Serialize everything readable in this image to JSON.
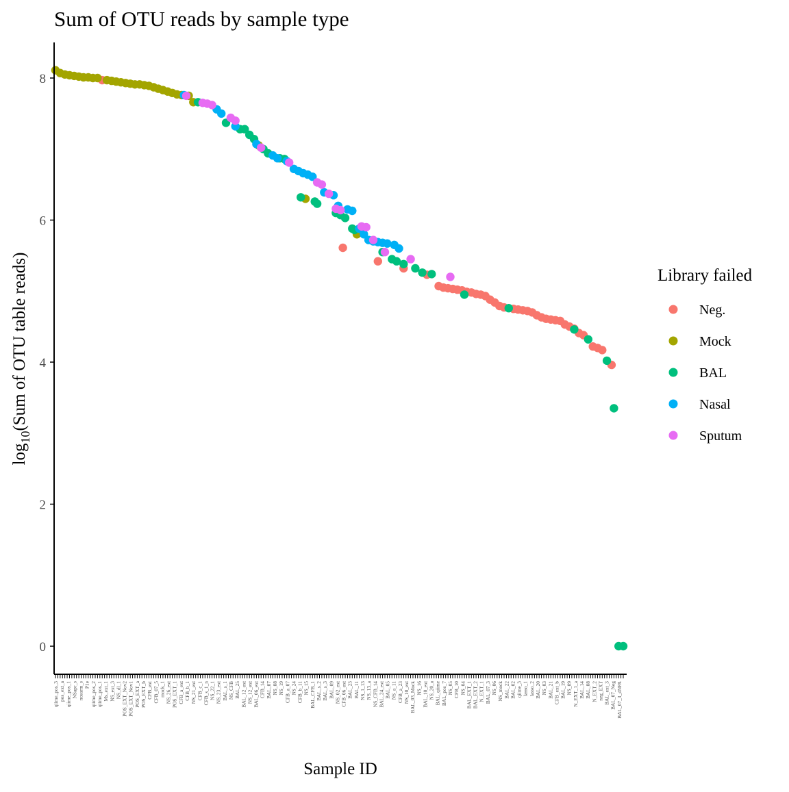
{
  "colors": {
    "Neg.": "#F8766D",
    "Mock": "#A3A500",
    "BAL": "#00BF7D",
    "Nasal": "#00B0F6",
    "Sputum": "#E76BF3",
    "axis": "#000000",
    "tick_text": "#4d4d4d",
    "background": "#ffffff"
  },
  "chart_data": {
    "type": "scatter",
    "title": "Sum of OTU reads by sample type",
    "xlabel": "Sample ID",
    "ylabel": {
      "prefix": "log",
      "subscript": "10",
      "suffix": "(Sum of OTU table reads)"
    },
    "ylim": [
      -0.4,
      8.5
    ],
    "yticks": [
      0,
      2,
      4,
      6,
      8
    ],
    "ytick_labels": [
      "0",
      "2",
      "4",
      "6",
      "8"
    ],
    "grid": false,
    "legend": {
      "title": "Library failed",
      "placement": "right",
      "entries": [
        "Neg.",
        "Mock",
        "BAL",
        "Nasal",
        "Sputum"
      ]
    },
    "x_tick_labels": [
      "qiime_pos_3",
      "pos_ext_a",
      "qiime_pos_1",
      "NSapr_s",
      "nosarm_s",
      "P1e",
      "qiime_pos_2",
      "qiime_pos_1",
      "Ms_ext_1",
      "NS_ext_3",
      "NS_dl_1",
      "POS_EXT_Nov2",
      "POS_EXT_Nov1",
      "POS_EXT_a",
      "POS_EXT_b",
      "CFB_ext",
      "CFB_07_5",
      "mock_1",
      "NS_26_ext",
      "POS_EXT_1",
      "CFB_a_ext",
      "CFB_b_1",
      "NS_21_ext",
      "CFB_c_1",
      "CFB_s_1_n",
      "NS_22_1",
      "NS_23_ext",
      "BAL_s_1",
      "NS_CFB",
      "BAL_25",
      "BAL_12_ext",
      "NS_12_ext",
      "BAL_06_ext",
      "CFB_14",
      "BAL_07",
      "NS_08",
      "NS_19",
      "CFB_a_07",
      "NS_24",
      "CFB_b_11",
      "NS_15",
      "BAL_CFB_1",
      "BAL_s_2",
      "BAL_s_3",
      "BAL_09",
      "NS_02_ext",
      "CFB_06_ext",
      "BAL_23",
      "BAL_11",
      "NS_1_13",
      "NS_13_a",
      "NS_CFB_14",
      "BAL_24_ext",
      "BAL_05",
      "NS_a_11",
      "CFB_a_23",
      "NS_10_ext",
      "BAL_03_Mock",
      "NS_16",
      "BAL_10_ext",
      "NS_20_a",
      "BAL_qiime",
      "BAL_pos_7",
      "NS_05",
      "CFB_10",
      "NS_04",
      "BAL_EXT_1",
      "BAL_EXT_2",
      "N_EXT_1",
      "BAL_07_3",
      "NS_06",
      "NS_mock",
      "BAL_22",
      "BAL_02",
      "qiime_3",
      "lasso_1",
      "lasso_2",
      "BAL_20",
      "NS_03",
      "BAL_21",
      "CFB_ext_b",
      "BAL_19",
      "NS_09",
      "N_EXT_1_a",
      "BAL_14",
      "BAL_08",
      "N_EXT_2",
      "neg_EXT",
      "BAL_ext_3",
      "BAL_07_Neg",
      "BAL_07_3_dNPA"
    ],
    "series": [
      {
        "name": "Neg.",
        "points": [
          [
            21,
            7.97
          ],
          [
            124,
            5.61
          ],
          [
            139,
            5.42
          ],
          [
            150,
            5.32
          ],
          [
            160,
            5.23
          ],
          [
            165,
            5.07
          ],
          [
            167,
            5.05
          ],
          [
            169,
            5.04
          ],
          [
            171,
            5.03
          ],
          [
            173,
            5.02
          ],
          [
            175,
            5.01
          ],
          [
            177,
            4.99
          ],
          [
            179,
            4.98
          ],
          [
            181,
            4.96
          ],
          [
            183,
            4.95
          ],
          [
            185,
            4.93
          ],
          [
            187,
            4.88
          ],
          [
            189,
            4.84
          ],
          [
            191,
            4.79
          ],
          [
            193,
            4.77
          ],
          [
            197,
            4.75
          ],
          [
            199,
            4.74
          ],
          [
            201,
            4.73
          ],
          [
            203,
            4.72
          ],
          [
            205,
            4.7
          ],
          [
            207,
            4.66
          ],
          [
            209,
            4.63
          ],
          [
            211,
            4.61
          ],
          [
            213,
            4.6
          ],
          [
            215,
            4.59
          ],
          [
            217,
            4.58
          ],
          [
            219,
            4.53
          ],
          [
            221,
            4.5
          ],
          [
            223,
            4.47
          ],
          [
            225,
            4.41
          ],
          [
            227,
            4.38
          ],
          [
            231,
            4.22
          ],
          [
            233,
            4.2
          ],
          [
            235,
            4.17
          ],
          [
            239,
            3.96
          ]
        ]
      },
      {
        "name": "Mock",
        "points": [
          [
            1,
            8.11
          ],
          [
            3,
            8.07
          ],
          [
            5,
            8.05
          ],
          [
            7,
            8.04
          ],
          [
            9,
            8.03
          ],
          [
            11,
            8.02
          ],
          [
            13,
            8.01
          ],
          [
            15,
            8.01
          ],
          [
            17,
            8.0
          ],
          [
            19,
            8.0
          ],
          [
            23,
            7.97
          ],
          [
            25,
            7.96
          ],
          [
            27,
            7.95
          ],
          [
            29,
            7.94
          ],
          [
            31,
            7.93
          ],
          [
            33,
            7.92
          ],
          [
            35,
            7.91
          ],
          [
            37,
            7.91
          ],
          [
            39,
            7.9
          ],
          [
            41,
            7.89
          ],
          [
            43,
            7.87
          ],
          [
            45,
            7.85
          ],
          [
            47,
            7.83
          ],
          [
            49,
            7.81
          ],
          [
            51,
            7.79
          ],
          [
            53,
            7.77
          ],
          [
            55,
            7.76
          ],
          [
            58,
            7.75
          ],
          [
            60,
            7.66
          ],
          [
            88,
            7.05
          ],
          [
            108,
            6.3
          ],
          [
            130,
            5.8
          ]
        ]
      },
      {
        "name": "BAL",
        "points": [
          [
            62,
            7.66
          ],
          [
            74,
            7.37
          ],
          [
            80,
            7.28
          ],
          [
            82,
            7.28
          ],
          [
            84,
            7.2
          ],
          [
            86,
            7.14
          ],
          [
            90,
            7.0
          ],
          [
            92,
            6.94
          ],
          [
            97,
            6.87
          ],
          [
            99,
            6.86
          ],
          [
            106,
            6.32
          ],
          [
            112,
            6.26
          ],
          [
            113,
            6.23
          ],
          [
            121,
            6.1
          ],
          [
            123,
            6.07
          ],
          [
            125,
            6.03
          ],
          [
            128,
            5.88
          ],
          [
            129,
            5.86
          ],
          [
            141,
            5.55
          ],
          [
            145,
            5.45
          ],
          [
            147,
            5.42
          ],
          [
            150,
            5.38
          ],
          [
            155,
            5.32
          ],
          [
            158,
            5.26
          ],
          [
            162,
            5.24
          ],
          [
            176,
            4.95
          ],
          [
            195,
            4.76
          ],
          [
            223,
            4.46
          ],
          [
            229,
            4.32
          ],
          [
            237,
            4.02
          ],
          [
            240,
            3.35
          ],
          [
            242,
            0.0
          ],
          [
            244,
            0.0
          ]
        ]
      },
      {
        "name": "Nasal",
        "points": [
          [
            56,
            7.76
          ],
          [
            70,
            7.56
          ],
          [
            72,
            7.5
          ],
          [
            78,
            7.32
          ],
          [
            87,
            7.07
          ],
          [
            94,
            6.91
          ],
          [
            96,
            6.87
          ],
          [
            100,
            6.83
          ],
          [
            103,
            6.72
          ],
          [
            105,
            6.69
          ],
          [
            107,
            6.66
          ],
          [
            109,
            6.64
          ],
          [
            111,
            6.61
          ],
          [
            116,
            6.39
          ],
          [
            120,
            6.35
          ],
          [
            122,
            6.2
          ],
          [
            126,
            6.15
          ],
          [
            128,
            6.13
          ],
          [
            131,
            5.88
          ],
          [
            133,
            5.8
          ],
          [
            135,
            5.72
          ],
          [
            137,
            5.7
          ],
          [
            139,
            5.69
          ],
          [
            141,
            5.68
          ],
          [
            143,
            5.67
          ],
          [
            146,
            5.65
          ],
          [
            148,
            5.6
          ]
        ]
      },
      {
        "name": "Sputum",
        "points": [
          [
            57,
            7.75
          ],
          [
            64,
            7.65
          ],
          [
            66,
            7.64
          ],
          [
            68,
            7.62
          ],
          [
            76,
            7.44
          ],
          [
            78,
            7.4
          ],
          [
            89,
            7.02
          ],
          [
            101,
            6.81
          ],
          [
            113,
            6.53
          ],
          [
            115,
            6.5
          ],
          [
            118,
            6.37
          ],
          [
            121,
            6.16
          ],
          [
            123,
            6.14
          ],
          [
            132,
            5.91
          ],
          [
            134,
            5.9
          ],
          [
            137,
            5.72
          ],
          [
            142,
            5.55
          ],
          [
            153,
            5.45
          ],
          [
            170,
            5.2
          ]
        ]
      }
    ]
  }
}
